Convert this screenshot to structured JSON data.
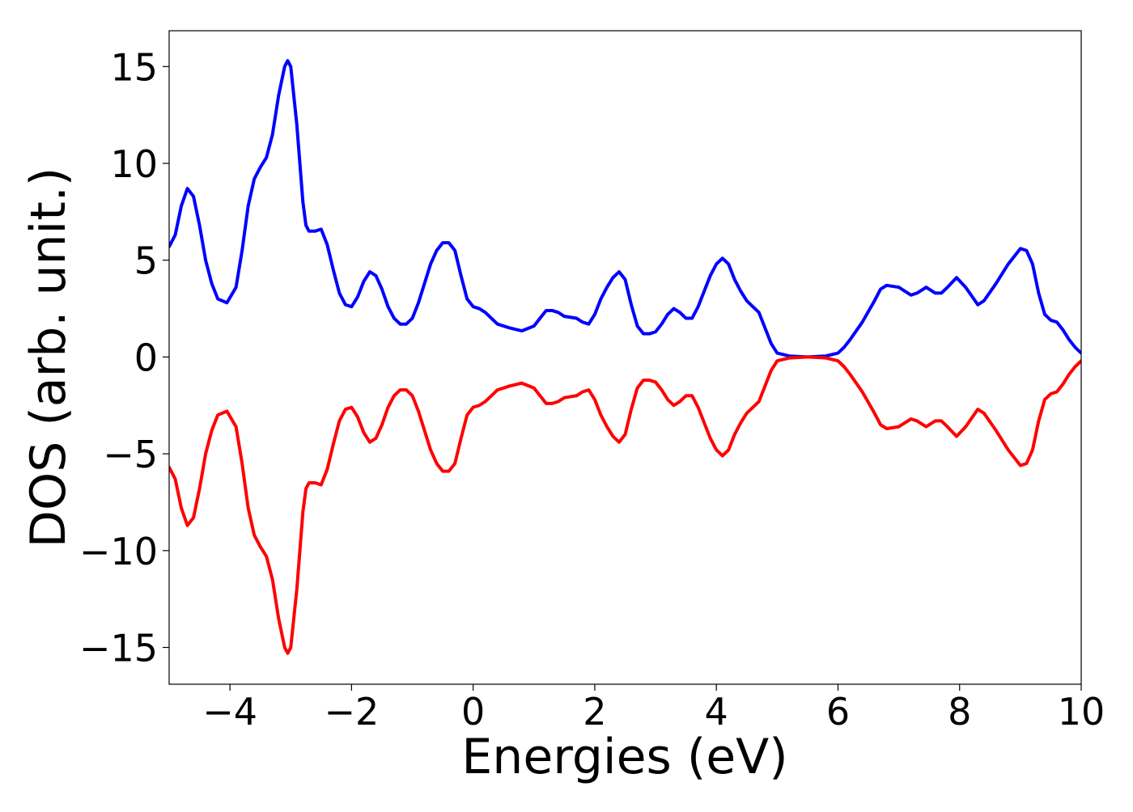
{
  "chart_data": {
    "type": "line",
    "xlabel": "Energies (eV)",
    "ylabel": "DOS (arb. unit.)",
    "xlim": [
      -5,
      10
    ],
    "ylim": [
      -16.9,
      16.85
    ],
    "xticks": [
      {
        "value": -4,
        "label": "−4"
      },
      {
        "value": -2,
        "label": "−2"
      },
      0,
      2,
      4,
      6,
      8,
      10
    ],
    "yticks": [
      {
        "value": -15,
        "label": "−15"
      },
      {
        "value": -10,
        "label": "−10"
      },
      {
        "value": -5,
        "label": "−5"
      },
      0,
      5,
      10,
      15
    ],
    "grid": false,
    "x": [
      -5,
      -4.9,
      -4.8,
      -4.7,
      -4.6,
      -4.5,
      -4.4,
      -4.3,
      -4.2,
      -4.05,
      -3.9,
      -3.8,
      -3.7,
      -3.6,
      -3.5,
      -3.4,
      -3.3,
      -3.2,
      -3.1,
      -3.05,
      -3.0,
      -2.9,
      -2.8,
      -2.75,
      -2.7,
      -2.6,
      -2.5,
      -2.4,
      -2.3,
      -2.2,
      -2.1,
      -2.0,
      -1.9,
      -1.8,
      -1.7,
      -1.6,
      -1.5,
      -1.4,
      -1.3,
      -1.2,
      -1.1,
      -1.0,
      -0.9,
      -0.8,
      -0.7,
      -0.6,
      -0.5,
      -0.4,
      -0.3,
      -0.2,
      -0.1,
      0.0,
      0.1,
      0.2,
      0.3,
      0.4,
      0.6,
      0.8,
      1.0,
      1.1,
      1.2,
      1.3,
      1.4,
      1.5,
      1.7,
      1.8,
      1.9,
      2.0,
      2.1,
      2.2,
      2.3,
      2.4,
      2.5,
      2.6,
      2.7,
      2.8,
      2.9,
      3.0,
      3.1,
      3.2,
      3.3,
      3.4,
      3.5,
      3.6,
      3.7,
      3.8,
      3.9,
      4.0,
      4.1,
      4.2,
      4.3,
      4.4,
      4.5,
      4.6,
      4.7,
      4.8,
      4.9,
      5.0,
      5.2,
      5.5,
      5.8,
      6.0,
      6.1,
      6.2,
      6.4,
      6.6,
      6.7,
      6.8,
      7.0,
      7.2,
      7.3,
      7.45,
      7.6,
      7.7,
      7.8,
      7.95,
      8.1,
      8.3,
      8.4,
      8.6,
      8.8,
      9.0,
      9.1,
      9.2,
      9.3,
      9.4,
      9.5,
      9.6,
      9.7,
      9.8,
      9.9,
      10.0
    ],
    "series": [
      {
        "color": "#0000ff",
        "values": [
          5.7,
          6.3,
          7.8,
          8.7,
          8.3,
          6.8,
          5.0,
          3.8,
          3.0,
          2.8,
          3.6,
          5.5,
          7.8,
          9.2,
          9.8,
          10.3,
          11.5,
          13.5,
          15.0,
          15.3,
          15.0,
          12.0,
          8.0,
          6.8,
          6.5,
          6.5,
          6.6,
          5.8,
          4.5,
          3.3,
          2.7,
          2.6,
          3.1,
          3.9,
          4.4,
          4.2,
          3.5,
          2.6,
          2.0,
          1.7,
          1.7,
          2.0,
          2.8,
          3.8,
          4.8,
          5.5,
          5.9,
          5.9,
          5.5,
          4.2,
          3.0,
          2.6,
          2.5,
          2.3,
          2.0,
          1.7,
          1.5,
          1.35,
          1.6,
          2.0,
          2.4,
          2.4,
          2.3,
          2.1,
          2.0,
          1.8,
          1.7,
          2.2,
          3.0,
          3.6,
          4.1,
          4.4,
          4.0,
          2.7,
          1.6,
          1.2,
          1.2,
          1.3,
          1.7,
          2.2,
          2.5,
          2.3,
          2.0,
          2.0,
          2.6,
          3.4,
          4.2,
          4.8,
          5.1,
          4.8,
          4.0,
          3.4,
          2.9,
          2.6,
          2.3,
          1.5,
          0.7,
          0.2,
          0.05,
          0.0,
          0.05,
          0.2,
          0.5,
          0.9,
          1.8,
          2.9,
          3.5,
          3.7,
          3.6,
          3.2,
          3.3,
          3.6,
          3.3,
          3.3,
          3.6,
          4.1,
          3.6,
          2.7,
          2.9,
          3.8,
          4.8,
          5.6,
          5.5,
          4.8,
          3.3,
          2.2,
          1.9,
          1.8,
          1.4,
          0.9,
          0.5,
          0.2
        ]
      },
      {
        "color": "#ff0000",
        "values": [
          -5.7,
          -6.3,
          -7.8,
          -8.7,
          -8.3,
          -6.8,
          -5.0,
          -3.8,
          -3.0,
          -2.8,
          -3.6,
          -5.5,
          -7.8,
          -9.2,
          -9.8,
          -10.3,
          -11.5,
          -13.5,
          -15.0,
          -15.3,
          -15.0,
          -12.0,
          -8.0,
          -6.8,
          -6.5,
          -6.5,
          -6.6,
          -5.8,
          -4.5,
          -3.3,
          -2.7,
          -2.6,
          -3.1,
          -3.9,
          -4.4,
          -4.2,
          -3.5,
          -2.6,
          -2.0,
          -1.7,
          -1.7,
          -2.0,
          -2.8,
          -3.8,
          -4.8,
          -5.5,
          -5.9,
          -5.9,
          -5.5,
          -4.2,
          -3.0,
          -2.6,
          -2.5,
          -2.3,
          -2.0,
          -1.7,
          -1.5,
          -1.35,
          -1.6,
          -2.0,
          -2.4,
          -2.4,
          -2.3,
          -2.1,
          -2.0,
          -1.8,
          -1.7,
          -2.2,
          -3.0,
          -3.6,
          -4.1,
          -4.4,
          -4.0,
          -2.7,
          -1.6,
          -1.2,
          -1.2,
          -1.3,
          -1.7,
          -2.2,
          -2.5,
          -2.3,
          -2.0,
          -2.0,
          -2.6,
          -3.4,
          -4.2,
          -4.8,
          -5.1,
          -4.8,
          -4.0,
          -3.4,
          -2.9,
          -2.6,
          -2.3,
          -1.5,
          -0.7,
          -0.2,
          -0.05,
          0.0,
          -0.05,
          -0.2,
          -0.5,
          -0.9,
          -1.8,
          -2.9,
          -3.5,
          -3.7,
          -3.6,
          -3.2,
          -3.3,
          -3.6,
          -3.3,
          -3.3,
          -3.6,
          -4.1,
          -3.6,
          -2.7,
          -2.9,
          -3.8,
          -4.8,
          -5.6,
          -5.5,
          -4.8,
          -3.3,
          -2.2,
          -1.9,
          -1.8,
          -1.4,
          -0.9,
          -0.5,
          -0.2
        ]
      }
    ]
  }
}
